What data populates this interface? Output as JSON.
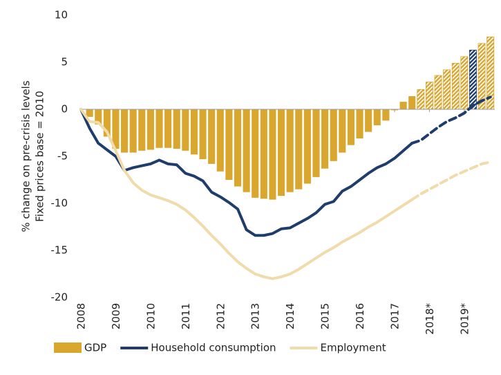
{
  "chart_data": {
    "type": "bar-line",
    "y_label": [
      "% change on pre-crisis levels",
      "Fixed prices base = 2010"
    ],
    "x": [
      2008,
      2008.25,
      2008.5,
      2008.75,
      2009,
      2009.25,
      2009.5,
      2009.75,
      2010,
      2010.25,
      2010.5,
      2010.75,
      2011,
      2011.25,
      2011.5,
      2011.75,
      2012,
      2012.25,
      2012.5,
      2012.75,
      2013,
      2013.25,
      2013.5,
      2013.75,
      2014,
      2014.25,
      2014.5,
      2014.75,
      2015,
      2015.25,
      2015.5,
      2015.75,
      2016,
      2016.25,
      2016.5,
      2016.75,
      2017,
      2017.25,
      2017.5,
      2017.75,
      2018,
      2018.25,
      2018.5,
      2018.75,
      2019,
      2019.25,
      2019.5,
      2019.75
    ],
    "xlim": [
      2008,
      2019.875
    ],
    "xticks": [
      2008,
      2009,
      2010,
      2011,
      2012,
      2013,
      2014,
      2015,
      2016,
      2017,
      {
        "value": 2018,
        "label": "2018*"
      },
      {
        "value": 2019,
        "label": "2019*"
      }
    ],
    "ylim": [
      -20,
      10
    ],
    "yticks": [
      10,
      5,
      0,
      -5,
      -10,
      -15,
      -20
    ],
    "forecast_from_index": 39,
    "series": [
      {
        "name": "GDP",
        "kind": "bar",
        "color": "#d9a62e",
        "highlight_color": "#1f3d6b",
        "highlight_index": 45,
        "values": [
          0,
          -0.8,
          -1.6,
          -2.9,
          -4.2,
          -4.6,
          -4.6,
          -4.4,
          -4.3,
          -4.1,
          -4.1,
          -4.2,
          -4.4,
          -4.8,
          -5.3,
          -5.8,
          -6.6,
          -7.5,
          -8.2,
          -8.8,
          -9.4,
          -9.5,
          -9.6,
          -9.2,
          -8.8,
          -8.5,
          -7.9,
          -7.2,
          -6.3,
          -5.5,
          -4.6,
          -3.8,
          -3.1,
          -2.4,
          -1.7,
          -1.2,
          -0.1,
          0.8,
          1.4,
          2.1,
          2.9,
          3.6,
          4.2,
          4.9,
          5.6,
          6.3,
          7.0,
          7.7
        ]
      },
      {
        "name": "Household consumption",
        "kind": "line",
        "color": "#1f3d6b",
        "values": [
          0,
          -2.0,
          -3.6,
          -4.3,
          -5.0,
          -6.5,
          -6.2,
          -6.0,
          -5.8,
          -5.4,
          -5.8,
          -5.9,
          -6.8,
          -7.1,
          -7.6,
          -8.8,
          -9.3,
          -9.9,
          -10.6,
          -12.8,
          -13.4,
          -13.4,
          -13.2,
          -12.7,
          -12.6,
          -12.1,
          -11.6,
          -11.0,
          -10.1,
          -9.8,
          -8.7,
          -8.2,
          -7.5,
          -6.8,
          -6.2,
          -5.8,
          -5.2,
          -4.4,
          -3.6,
          -3.3,
          -2.6,
          -1.9,
          -1.3,
          -0.9,
          -0.4,
          0.4,
          0.9,
          1.3
        ]
      },
      {
        "name": "Employment",
        "kind": "line",
        "color": "#f0dcaa",
        "values": [
          0,
          -1.3,
          -1.4,
          -2.4,
          -4.4,
          -6.5,
          -7.8,
          -8.6,
          -9.1,
          -9.4,
          -9.7,
          -10.1,
          -10.7,
          -11.5,
          -12.4,
          -13.4,
          -14.3,
          -15.3,
          -16.2,
          -16.9,
          -17.5,
          -17.8,
          -18.0,
          -17.8,
          -17.5,
          -17.0,
          -16.4,
          -15.8,
          -15.2,
          -14.7,
          -14.1,
          -13.6,
          -13.1,
          -12.5,
          -12.0,
          -11.4,
          -10.8,
          -10.2,
          -9.6,
          -9.0,
          -8.5,
          -8.0,
          -7.5,
          -7.0,
          -6.6,
          -6.2,
          -5.8,
          -5.6
        ]
      }
    ]
  }
}
